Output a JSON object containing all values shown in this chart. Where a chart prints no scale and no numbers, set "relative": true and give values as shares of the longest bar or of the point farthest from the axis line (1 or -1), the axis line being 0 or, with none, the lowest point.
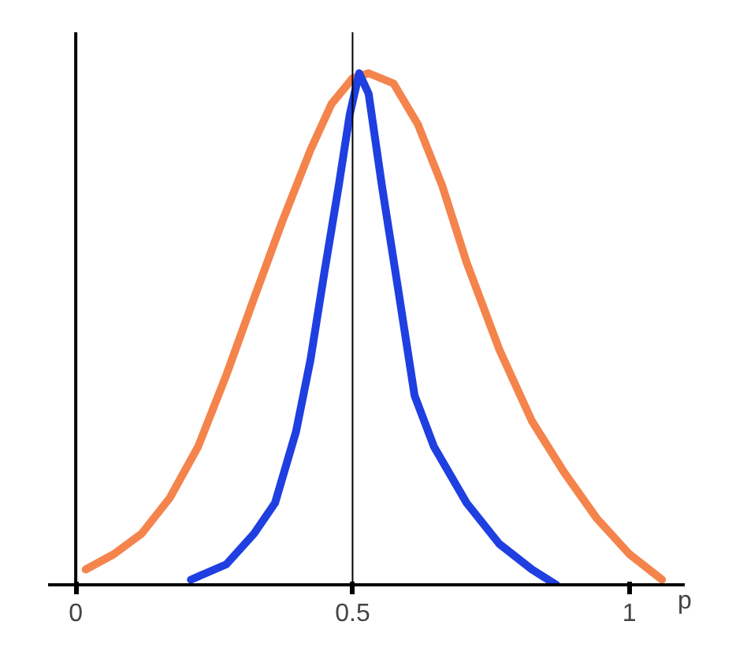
{
  "chart_data": {
    "type": "line",
    "relative": true,
    "xlabel": "p",
    "xlim": [
      -0.05,
      1.1
    ],
    "xticks": [
      0,
      0.5,
      1
    ],
    "grid": false,
    "marker": "none",
    "line_style": "solid",
    "ref_lines": [
      {
        "axis": "x",
        "value": 0.5,
        "color": "#000000"
      }
    ],
    "series": [
      {
        "color": "#f4844c",
        "x": [
          0.018,
          0.069,
          0.119,
          0.17,
          0.221,
          0.272,
          0.322,
          0.373,
          0.424,
          0.462,
          0.5,
          0.529,
          0.574,
          0.618,
          0.662,
          0.706,
          0.765,
          0.824,
          0.882,
          0.941,
          1.0,
          1.059
        ],
        "values": [
          0.03,
          0.06,
          0.1,
          0.17,
          0.27,
          0.41,
          0.56,
          0.71,
          0.85,
          0.94,
          0.99,
          1.0,
          0.98,
          0.9,
          0.78,
          0.63,
          0.46,
          0.32,
          0.22,
          0.13,
          0.06,
          0.01
        ]
      },
      {
        "color": "#1f3fe0",
        "x": [
          0.208,
          0.272,
          0.322,
          0.36,
          0.398,
          0.424,
          0.449,
          0.475,
          0.495,
          0.512,
          0.529,
          0.553,
          0.582,
          0.612,
          0.647,
          0.706,
          0.765,
          0.824,
          0.868
        ],
        "values": [
          0.01,
          0.04,
          0.1,
          0.16,
          0.3,
          0.44,
          0.61,
          0.78,
          0.92,
          1.0,
          0.96,
          0.78,
          0.58,
          0.37,
          0.27,
          0.16,
          0.08,
          0.03,
          0.0
        ]
      }
    ]
  }
}
